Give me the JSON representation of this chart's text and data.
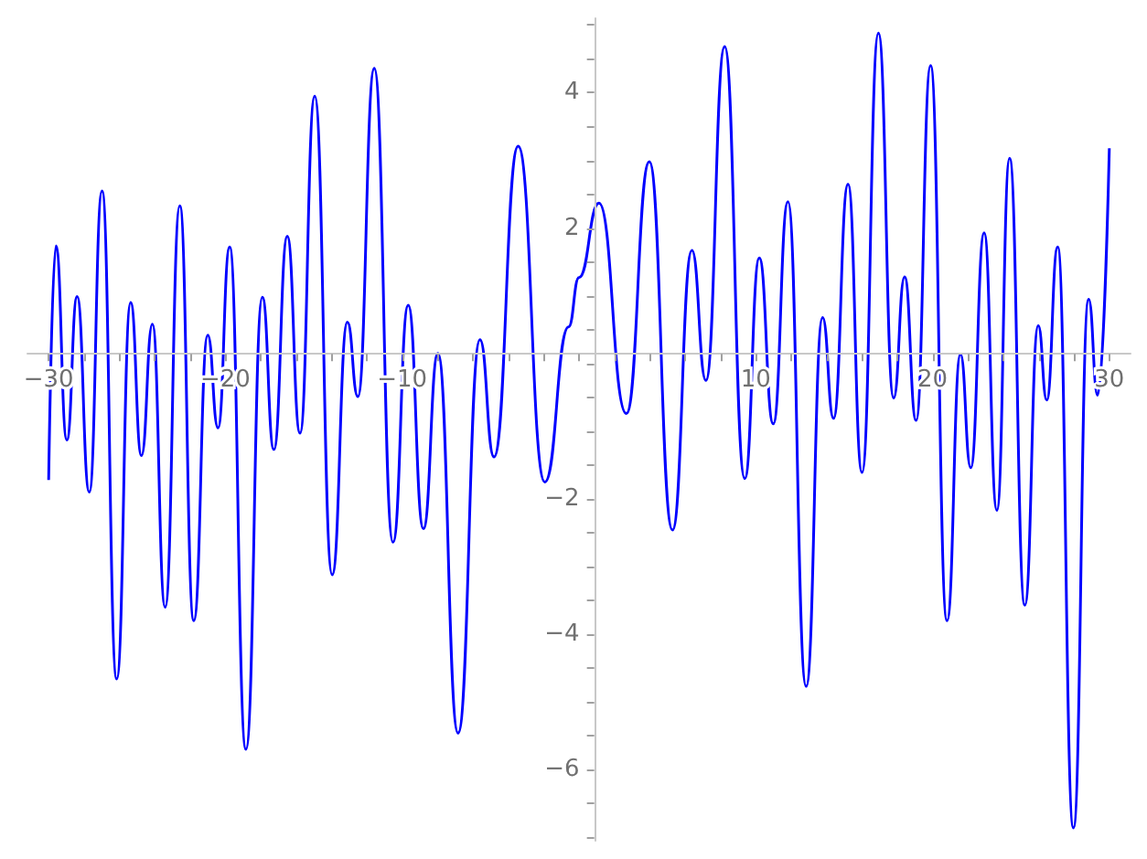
{
  "chart_data": {
    "type": "line",
    "color": "#0000ff",
    "marker": "none",
    "line_style": "solid",
    "x": [
      -30,
      -29.59,
      -28.97,
      -28.39,
      -27.7,
      -26.98,
      -26.15,
      -25.36,
      -24.75,
      -24.13,
      -23.41,
      -22.58,
      -21.79,
      -21,
      -20.42,
      -19.76,
      -18.84,
      -17.91,
      -17.26,
      -16.5,
      -15.78,
      -14.95,
      -13.96,
      -13.1,
      -12.51,
      -11.58,
      -10.52,
      -9.66,
      -8.8,
      -7.98,
      -6.84,
      -5.6,
      -4.81,
      -3.44,
      -1.93,
      -0.59,
      0,
      1.13,
      2.68,
      3.98,
      5.29,
      6.39,
      7.18,
      8.24,
      9.38,
      10.2,
      10.99,
      11.82,
      12.85,
      13.78,
      14.4,
      15.22,
      16.01,
      16.94,
      17.8,
      18.42,
      19.07,
      19.89,
      20.82,
      21.58,
      22.16,
      22.92,
      23.64,
      24.36,
      25.22,
      25.98,
      26.46,
      27.08,
      27.97,
      28.83,
      29.34,
      30
    ],
    "values": [
      -1.72,
      1.74,
      -1.13,
      0.99,
      -1.9,
      2.55,
      -4.66,
      0.9,
      -1.36,
      0.58,
      -3.6,
      2.33,
      -3.8,
      0.42,
      -0.95,
      1.72,
      -5.7,
      0.98,
      -1.27,
      1.88,
      -1.03,
      3.95,
      -3.12,
      0.61,
      -0.49,
      4.36,
      -2.64,
      0.86,
      -2.44,
      0.15,
      -5.46,
      0.35,
      -1.38,
      3.21,
      -1.75,
      0.54,
      1.27,
      2.37,
      -0.74,
      2.98,
      -2.46,
      1.67,
      -0.25,
      4.68,
      -1.7,
      1.56,
      -0.89,
      2.39,
      -4.77,
      0.68,
      -0.81,
      2.65,
      -1.61,
      4.88,
      -0.51,
      1.28,
      -0.84,
      4.4,
      -3.8,
      0.14,
      -1.54,
      1.93,
      -2.17,
      3.03,
      -3.57,
      0.56,
      -0.54,
      1.72,
      -6.86,
      0.95,
      -0.47,
      3.18
    ],
    "xlim": [
      -31.2,
      31.2
    ],
    "xticks": [
      {
        "value": -30,
        "label": "−30"
      },
      {
        "value": -28,
        "label": null
      },
      {
        "value": -26,
        "label": null
      },
      {
        "value": -24,
        "label": null
      },
      {
        "value": -22,
        "label": null
      },
      {
        "value": -20,
        "label": "−20"
      },
      {
        "value": -18,
        "label": null
      },
      {
        "value": -16,
        "label": null
      },
      {
        "value": -14,
        "label": null
      },
      {
        "value": -12,
        "label": null
      },
      {
        "value": -10,
        "label": "−10"
      },
      {
        "value": -8,
        "label": null
      },
      {
        "value": -6,
        "label": null
      },
      {
        "value": -4,
        "label": null
      },
      {
        "value": -2,
        "label": null
      },
      {
        "value": 0,
        "label": null
      },
      {
        "value": 2,
        "label": null
      },
      {
        "value": 4,
        "label": null
      },
      {
        "value": 6,
        "label": null
      },
      {
        "value": 8,
        "label": null
      },
      10,
      {
        "value": 12,
        "label": null
      },
      {
        "value": 14,
        "label": null
      },
      {
        "value": 16,
        "label": null
      },
      {
        "value": 18,
        "label": null
      },
      20,
      {
        "value": 22,
        "label": null
      },
      {
        "value": 24,
        "label": null
      },
      {
        "value": 26,
        "label": null
      },
      {
        "value": 28,
        "label": null
      },
      30
    ],
    "ylim": [
      -7.05,
      5.1
    ],
    "yticks": [
      {
        "value": -7,
        "label": null
      },
      {
        "value": -6.5,
        "label": null
      },
      {
        "value": -6,
        "label": "−6"
      },
      {
        "value": -5.5,
        "label": null
      },
      {
        "value": -5,
        "label": null
      },
      {
        "value": -4.5,
        "label": null
      },
      {
        "value": -4,
        "label": "−4"
      },
      {
        "value": -3.5,
        "label": null
      },
      {
        "value": -3,
        "label": null
      },
      {
        "value": -2.5,
        "label": null
      },
      {
        "value": -2,
        "label": "−2"
      },
      {
        "value": -1.5,
        "label": null
      },
      {
        "value": -1,
        "label": null
      },
      {
        "value": -0.5,
        "label": null
      },
      {
        "value": 0,
        "label": null
      },
      {
        "value": 0.5,
        "label": null
      },
      {
        "value": 1,
        "label": null
      },
      {
        "value": 1.5,
        "label": null
      },
      2,
      {
        "value": 2.5,
        "label": null
      },
      {
        "value": 3,
        "label": null
      },
      {
        "value": 3.5,
        "label": null
      },
      4,
      {
        "value": 4.5,
        "label": null
      },
      {
        "value": 5,
        "label": null
      }
    ]
  }
}
